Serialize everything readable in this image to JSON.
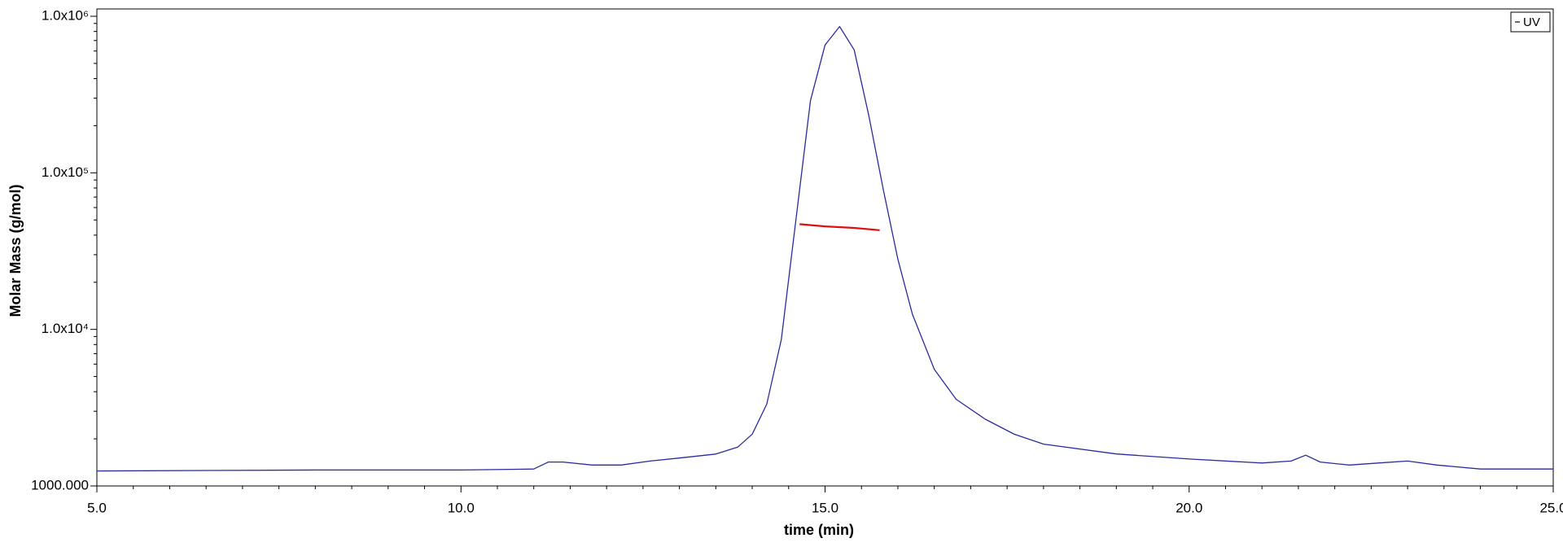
{
  "chart_data": {
    "type": "line",
    "xlabel": "time (min)",
    "ylabel": "Molar Mass (g/mol)",
    "xlim": [
      5,
      25
    ],
    "xticks": [
      {
        "value": 5,
        "label": "5.0"
      },
      {
        "value": 10,
        "label": "10.0"
      },
      {
        "value": 15,
        "label": "15.0"
      },
      {
        "value": 20,
        "label": "20.0"
      },
      {
        "value": 25,
        "label": "25.0"
      }
    ],
    "xminorticks": [
      5.5,
      6,
      6.5,
      7,
      7.5,
      8,
      8.5,
      9,
      9.5,
      10.5,
      11,
      11.5,
      12,
      12.5,
      13,
      13.5,
      14,
      14.5,
      15.5,
      16,
      16.5,
      17,
      17.5,
      18,
      18.5,
      19,
      19.5,
      20.5,
      21,
      21.5,
      22,
      22.5,
      23,
      23.5,
      24,
      24.5
    ],
    "yscale": "log",
    "ylim": [
      1000,
      1000000
    ],
    "yticks": [
      {
        "value": 1000,
        "label": "1000.000"
      },
      {
        "value": 10000,
        "label": "1.0x10⁴"
      },
      {
        "value": 100000,
        "label": "1.0x10⁵"
      },
      {
        "value": 1000000,
        "label": "1.0x10⁶"
      }
    ],
    "yminorticks": [
      2000,
      3000,
      4000,
      5000,
      6000,
      7000,
      8000,
      9000,
      20000,
      30000,
      40000,
      50000,
      60000,
      70000,
      80000,
      90000,
      200000,
      300000,
      400000,
      500000,
      600000,
      700000,
      800000,
      900000
    ],
    "legend": "upper right",
    "series": [
      {
        "name": "UV",
        "color": "#2b2b9c",
        "x": [
          5,
          8,
          10,
          11,
          11.2,
          11.4,
          11.8,
          12.2,
          12.6,
          13,
          13.5,
          13.8,
          14,
          14.2,
          14.4,
          14.6,
          14.8,
          15,
          15.2,
          15.4,
          15.6,
          15.8,
          16,
          16.2,
          16.5,
          16.8,
          17.2,
          17.6,
          18,
          19,
          20,
          21,
          21.4,
          21.6,
          21.8,
          22.2,
          22.6,
          23,
          23.4,
          24,
          25
        ],
        "values": [
          1246,
          1265,
          1265,
          1283,
          1422,
          1422,
          1360,
          1360,
          1443,
          1508,
          1599,
          1771,
          2144,
          3330,
          8630,
          50000,
          290000,
          655000,
          860000,
          610000,
          233000,
          78000,
          28000,
          12500,
          5560,
          3580,
          2670,
          2140,
          1850,
          1600,
          1486,
          1401,
          1443,
          1573,
          1422,
          1360,
          1401,
          1443,
          1360,
          1283,
          1283
        ]
      },
      {
        "color": "#e01010",
        "x": [
          14.65,
          15.0,
          15.4,
          15.75
        ],
        "values": [
          47000,
          45500,
          44500,
          43000
        ]
      }
    ]
  }
}
